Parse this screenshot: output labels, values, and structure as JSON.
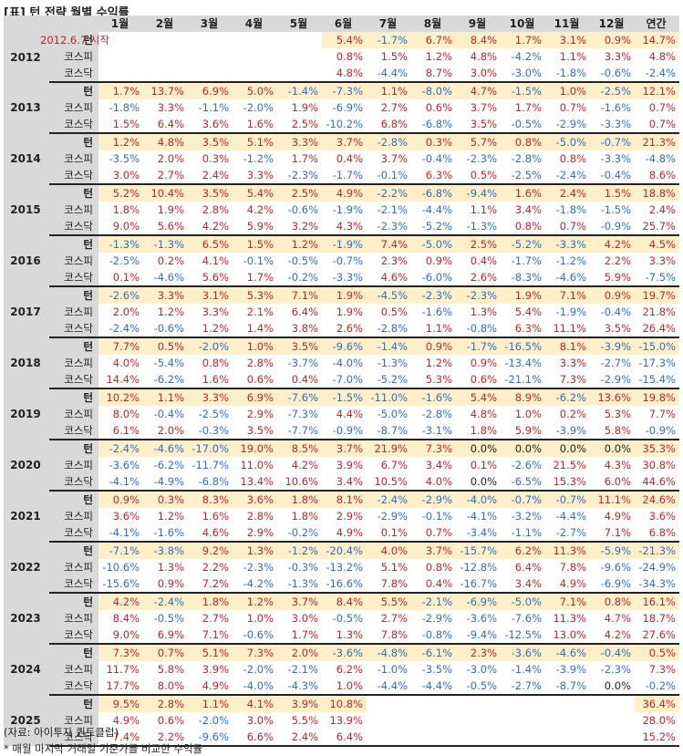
{
  "title": "[표] 턴 전략 월별 수익률",
  "headers": [
    "1월",
    "2월",
    "3월",
    "4월",
    "5월",
    "6월",
    "7월",
    "8월",
    "9월",
    "10월",
    "11월",
    "12월",
    "연간"
  ],
  "row_labels": [
    "턴",
    "코스피",
    "코스닥"
  ],
  "note_2012": "2012.6.7 시작",
  "years": [
    {
      "year": "2012",
      "rows": [
        [
          "",
          "",
          "",
          "",
          "",
          "5.4%",
          "-1.7%",
          "6.7%",
          "8.4%",
          "1.7%",
          "3.1%",
          "0.9%",
          "14.7%"
        ],
        [
          "",
          "",
          "",
          "",
          "",
          "0.8%",
          "1.5%",
          "1.2%",
          "4.8%",
          "-4.2%",
          "1.1%",
          "3.3%",
          "4.8%"
        ],
        [
          "",
          "",
          "",
          "",
          "",
          "4.8%",
          "-4.4%",
          "8.7%",
          "3.0%",
          "-3.0%",
          "-1.8%",
          "-0.6%",
          "-2.4%"
        ]
      ]
    },
    {
      "year": "2013",
      "rows": [
        [
          "1.7%",
          "13.7%",
          "6.9%",
          "5.0%",
          "-1.4%",
          "-7.3%",
          "1.1%",
          "-8.0%",
          "4.7%",
          "-1.5%",
          "1.0%",
          "-2.5%",
          "12.1%"
        ],
        [
          "-1.8%",
          "3.3%",
          "-1.1%",
          "-2.0%",
          "1.9%",
          "-6.9%",
          "2.7%",
          "0.6%",
          "3.7%",
          "1.7%",
          "0.7%",
          "-1.6%",
          "0.7%"
        ],
        [
          "1.5%",
          "6.4%",
          "3.6%",
          "1.6%",
          "2.5%",
          "-10.2%",
          "6.8%",
          "-6.8%",
          "3.5%",
          "-0.5%",
          "-2.9%",
          "-3.3%",
          "0.7%"
        ]
      ]
    },
    {
      "year": "2014",
      "rows": [
        [
          "1.2%",
          "4.8%",
          "3.5%",
          "5.1%",
          "3.3%",
          "3.7%",
          "-2.8%",
          "0.3%",
          "5.7%",
          "0.8%",
          "-5.0%",
          "-0.7%",
          "21.3%"
        ],
        [
          "-3.5%",
          "2.0%",
          "0.3%",
          "-1.2%",
          "1.7%",
          "0.4%",
          "3.7%",
          "-0.4%",
          "-2.3%",
          "-2.8%",
          "0.8%",
          "-3.3%",
          "-4.8%"
        ],
        [
          "3.0%",
          "2.7%",
          "2.4%",
          "3.3%",
          "-2.3%",
          "-1.7%",
          "-0.1%",
          "6.3%",
          "0.5%",
          "-2.5%",
          "-2.4%",
          "-0.4%",
          "8.6%"
        ]
      ]
    },
    {
      "year": "2015",
      "rows": [
        [
          "5.2%",
          "10.4%",
          "3.5%",
          "5.4%",
          "2.5%",
          "4.9%",
          "-2.2%",
          "-6.8%",
          "-9.4%",
          "1.6%",
          "2.4%",
          "1.5%",
          "18.8%"
        ],
        [
          "1.8%",
          "1.9%",
          "2.8%",
          "4.2%",
          "-0.6%",
          "-1.9%",
          "-2.1%",
          "-4.4%",
          "1.1%",
          "3.4%",
          "-1.8%",
          "-1.5%",
          "2.4%"
        ],
        [
          "9.0%",
          "5.6%",
          "4.2%",
          "5.9%",
          "3.2%",
          "4.3%",
          "-2.3%",
          "-5.2%",
          "-1.3%",
          "0.8%",
          "0.7%",
          "-0.9%",
          "25.7%"
        ]
      ]
    },
    {
      "year": "2016",
      "rows": [
        [
          "-1.3%",
          "-1.3%",
          "6.5%",
          "1.5%",
          "1.2%",
          "-1.9%",
          "7.4%",
          "-5.0%",
          "2.5%",
          "-5.2%",
          "-3.3%",
          "4.2%",
          "4.5%"
        ],
        [
          "-2.5%",
          "0.2%",
          "4.1%",
          "-0.1%",
          "-0.5%",
          "-0.7%",
          "2.3%",
          "0.9%",
          "0.4%",
          "-1.7%",
          "-1.2%",
          "2.2%",
          "3.3%"
        ],
        [
          "0.1%",
          "-4.6%",
          "5.6%",
          "1.7%",
          "-0.2%",
          "-3.3%",
          "4.6%",
          "-6.0%",
          "2.6%",
          "-8.3%",
          "-4.6%",
          "5.9%",
          "-7.5%"
        ]
      ]
    },
    {
      "year": "2017",
      "rows": [
        [
          "-2.6%",
          "3.3%",
          "3.1%",
          "5.3%",
          "7.1%",
          "1.9%",
          "-4.5%",
          "-2.3%",
          "-2.3%",
          "1.9%",
          "7.1%",
          "0.9%",
          "19.7%"
        ],
        [
          "2.0%",
          "1.2%",
          "3.3%",
          "2.1%",
          "6.4%",
          "1.9%",
          "0.5%",
          "-1.6%",
          "1.3%",
          "5.4%",
          "-1.9%",
          "-0.4%",
          "21.8%"
        ],
        [
          "-2.4%",
          "-0.6%",
          "1.2%",
          "1.4%",
          "3.8%",
          "2.6%",
          "-2.8%",
          "1.1%",
          "-0.8%",
          "6.3%",
          "11.1%",
          "3.5%",
          "26.4%"
        ]
      ]
    },
    {
      "year": "2018",
      "rows": [
        [
          "7.7%",
          "0.5%",
          "-2.0%",
          "1.0%",
          "3.5%",
          "-9.6%",
          "-1.4%",
          "0.9%",
          "-1.7%",
          "-16.5%",
          "8.1%",
          "-3.9%",
          "-15.0%"
        ],
        [
          "4.0%",
          "-5.4%",
          "0.8%",
          "2.8%",
          "-3.7%",
          "-4.0%",
          "-1.3%",
          "1.2%",
          "0.9%",
          "-13.4%",
          "3.3%",
          "-2.7%",
          "-17.3%"
        ],
        [
          "14.4%",
          "-6.2%",
          "1.6%",
          "0.6%",
          "0.4%",
          "-7.0%",
          "-5.2%",
          "5.3%",
          "0.6%",
          "-21.1%",
          "7.3%",
          "-2.9%",
          "-15.4%"
        ]
      ]
    },
    {
      "year": "2019",
      "rows": [
        [
          "10.2%",
          "1.1%",
          "3.3%",
          "6.9%",
          "-7.6%",
          "-1.5%",
          "-11.0%",
          "-1.6%",
          "5.4%",
          "8.9%",
          "-6.2%",
          "13.6%",
          "19.8%"
        ],
        [
          "8.0%",
          "-0.4%",
          "-2.5%",
          "2.9%",
          "-7.3%",
          "4.4%",
          "-5.0%",
          "-2.8%",
          "4.8%",
          "1.0%",
          "0.2%",
          "5.3%",
          "7.7%"
        ],
        [
          "6.1%",
          "2.0%",
          "-0.3%",
          "3.5%",
          "-7.7%",
          "-0.9%",
          "-8.7%",
          "-3.1%",
          "1.8%",
          "5.9%",
          "-3.9%",
          "5.8%",
          "-0.9%"
        ]
      ]
    },
    {
      "year": "2020",
      "rows": [
        [
          "-2.4%",
          "-4.6%",
          "-17.0%",
          "19.0%",
          "8.5%",
          "3.7%",
          "21.9%",
          "7.3%",
          "0.0%",
          "0.0%",
          "0.0%",
          "0.0%",
          "35.3%"
        ],
        [
          "-3.6%",
          "-6.2%",
          "-11.7%",
          "11.0%",
          "4.2%",
          "3.9%",
          "6.7%",
          "3.4%",
          "0.1%",
          "-2.6%",
          "21.5%",
          "4.3%",
          "30.8%"
        ],
        [
          "-4.1%",
          "-4.9%",
          "-6.8%",
          "13.4%",
          "10.6%",
          "3.4%",
          "10.5%",
          "4.0%",
          "0.0%",
          "-6.5%",
          "15.3%",
          "6.0%",
          "44.6%"
        ]
      ]
    },
    {
      "year": "2021",
      "rows": [
        [
          "0.9%",
          "0.3%",
          "8.3%",
          "3.6%",
          "1.8%",
          "8.1%",
          "-2.4%",
          "-2.9%",
          "-4.0%",
          "-0.7%",
          "-0.7%",
          "11.1%",
          "24.6%"
        ],
        [
          "3.6%",
          "1.2%",
          "1.6%",
          "2.8%",
          "1.8%",
          "2.9%",
          "-2.9%",
          "-0.1%",
          "-4.1%",
          "-3.2%",
          "-4.4%",
          "4.9%",
          "3.6%"
        ],
        [
          "-4.1%",
          "-1.6%",
          "4.6%",
          "2.9%",
          "-0.2%",
          "4.9%",
          "0.1%",
          "0.7%",
          "-3.4%",
          "-1.1%",
          "-2.7%",
          "7.1%",
          "6.8%"
        ]
      ]
    },
    {
      "year": "2022",
      "rows": [
        [
          "-7.1%",
          "-3.8%",
          "9.2%",
          "1.3%",
          "-1.2%",
          "-20.4%",
          "4.0%",
          "3.7%",
          "-15.7%",
          "6.2%",
          "11.3%",
          "-5.9%",
          "-21.3%"
        ],
        [
          "-10.6%",
          "1.3%",
          "2.2%",
          "-2.3%",
          "-0.3%",
          "-13.2%",
          "5.1%",
          "0.8%",
          "-12.8%",
          "6.4%",
          "7.8%",
          "-9.6%",
          "-24.9%"
        ],
        [
          "-15.6%",
          "0.9%",
          "7.2%",
          "-4.2%",
          "-1.3%",
          "-16.6%",
          "7.8%",
          "0.4%",
          "-16.7%",
          "3.4%",
          "4.9%",
          "-6.9%",
          "-34.3%"
        ]
      ]
    },
    {
      "year": "2023",
      "rows": [
        [
          "4.2%",
          "-2.4%",
          "1.8%",
          "1.2%",
          "3.7%",
          "8.4%",
          "5.5%",
          "-2.1%",
          "-6.9%",
          "-5.0%",
          "7.1%",
          "0.8%",
          "16.1%"
        ],
        [
          "8.4%",
          "-0.5%",
          "2.7%",
          "1.0%",
          "3.0%",
          "-0.5%",
          "2.7%",
          "-2.9%",
          "-3.6%",
          "-7.6%",
          "11.3%",
          "4.7%",
          "18.7%"
        ],
        [
          "9.0%",
          "6.9%",
          "7.1%",
          "-0.6%",
          "1.7%",
          "1.3%",
          "7.8%",
          "-0.8%",
          "-9.4%",
          "-12.5%",
          "13.0%",
          "4.2%",
          "27.6%"
        ]
      ]
    },
    {
      "year": "2024",
      "rows": [
        [
          "7.3%",
          "0.7%",
          "5.1%",
          "7.3%",
          "2.0%",
          "-3.6%",
          "-4.8%",
          "-6.1%",
          "2.3%",
          "-3.6%",
          "-4.6%",
          "-0.4%",
          "0.5%"
        ],
        [
          "11.7%",
          "5.8%",
          "3.9%",
          "-2.0%",
          "-2.1%",
          "6.2%",
          "-1.0%",
          "-3.5%",
          "-3.0%",
          "-1.4%",
          "-3.9%",
          "-2.3%",
          "7.3%"
        ],
        [
          "17.7%",
          "8.0%",
          "4.9%",
          "-4.0%",
          "-4.3%",
          "1.0%",
          "-4.4%",
          "-4.4%",
          "-0.5%",
          "-2.7%",
          "-8.7%",
          "0.0%",
          "-0.2%"
        ]
      ]
    },
    {
      "year": "2025",
      "rows": [
        [
          "9.5%",
          "2.8%",
          "1.1%",
          "4.1%",
          "3.9%",
          "10.8%",
          "",
          "",
          "",
          "",
          "",
          "",
          "36.4%"
        ],
        [
          "4.9%",
          "0.6%",
          "-2.0%",
          "3.0%",
          "5.5%",
          "13.9%",
          "",
          "",
          "",
          "",
          "",
          "",
          "28.0%"
        ],
        [
          "7.4%",
          "2.2%",
          "-9.6%",
          "6.6%",
          "2.4%",
          "6.4%",
          "",
          "",
          "",
          "",
          "",
          "",
          "15.2%"
        ]
      ]
    }
  ],
  "footer": {
    "source": "(자료: 아이투자 퀀트클럽)",
    "footnote": "* 매월 마지막 거래일 기준가를 비교한 수익률"
  }
}
